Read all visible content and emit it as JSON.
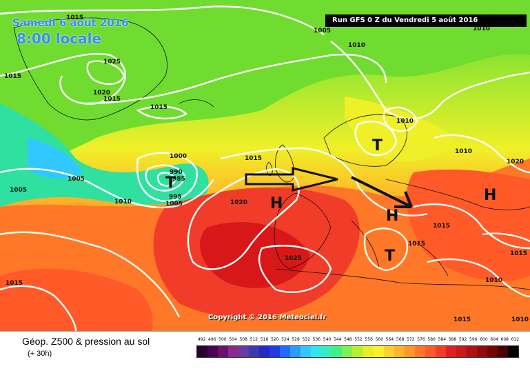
{
  "header": {
    "date": "Samedi 6 août 2016",
    "time": "8:00 locale",
    "run": "Run GFS 0 Z du Vendredi 5 août 2016"
  },
  "copyright": "Copyright © 2016 Meteociel.fr",
  "footer": {
    "title": "Géop. Z500 & pression au sol",
    "subtitle": "(+ 30h)"
  },
  "scale": {
    "labels": [
      "492",
      "496",
      "500",
      "504",
      "508",
      "512",
      "516",
      "520",
      "524",
      "528",
      "532",
      "536",
      "540",
      "544",
      "548",
      "552",
      "556",
      "560",
      "564",
      "568",
      "572",
      "576",
      "580",
      "584",
      "588",
      "592",
      "596",
      "600",
      "604",
      "608",
      "612"
    ],
    "colors": [
      "#2a0030",
      "#4a0050",
      "#6a1070",
      "#8a2890",
      "#6a3aa0",
      "#3a3ab0",
      "#2828c8",
      "#1e3ce6",
      "#1f6aff",
      "#2b9bff",
      "#30c8ff",
      "#30e6ef",
      "#30f0c0",
      "#40f080",
      "#80f050",
      "#b8f030",
      "#e6f028",
      "#fff028",
      "#ffd228",
      "#ffb428",
      "#ff9628",
      "#ff7828",
      "#ff5a28",
      "#f03c28",
      "#e02020",
      "#c81818",
      "#b01010",
      "#900a0a",
      "#700505",
      "#4a0000",
      "#000000"
    ]
  },
  "pressure_labels": [
    "1015",
    "1005",
    "1010",
    "1025",
    "1020",
    "1015",
    "1015",
    "1015",
    "1005",
    "1010",
    "1000",
    "990",
    "985",
    "995",
    "1005",
    "1010",
    "1015",
    "1020",
    "1010",
    "1010",
    "1005",
    "1020",
    "1015",
    "1015",
    "1025",
    "1010",
    "1015",
    "1015",
    "1010",
    "1015"
  ],
  "centers": {
    "low": "T",
    "high": "H"
  }
}
